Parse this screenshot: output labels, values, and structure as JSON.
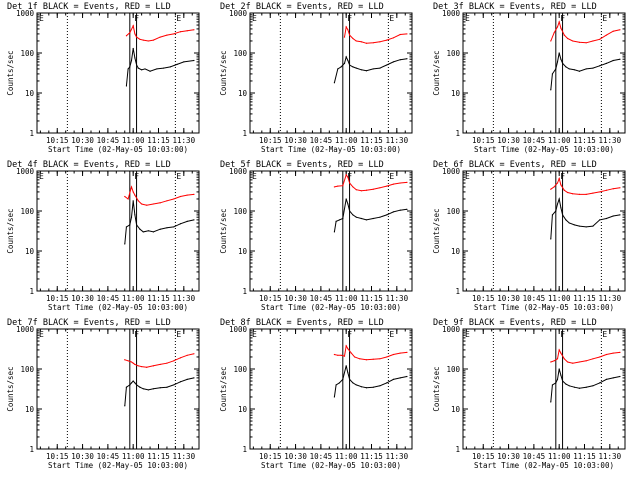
{
  "chart_data": [
    {
      "type": "line",
      "title": "Det 1f BLACK = Events, RED = LLD",
      "xlabel": "Start Time (02-May-05 10:03:00)",
      "ylabel": "Counts/sec",
      "x_ticks": [
        "10:15",
        "10:30",
        "10:45",
        "11:00",
        "11:15",
        "11:30"
      ],
      "yscale": "log",
      "ylim": [
        1,
        1000
      ],
      "y_ticks": [
        "1",
        "10",
        "100",
        "1000"
      ],
      "markers": [
        {
          "label": "E",
          "time": "10:03"
        },
        {
          "label": "F",
          "time": "11:00"
        },
        {
          "label": "E",
          "time": "11:25"
        }
      ],
      "series": [
        {
          "color": "#ff0000",
          "x": [
            "10:56",
            "10:58",
            "11:00",
            "11:01",
            "11:02",
            "11:04",
            "11:06",
            "11:09",
            "11:12",
            "11:16",
            "11:20",
            "11:24",
            "11:28",
            "11:32",
            "11:36"
          ],
          "values": [
            270,
            320,
            480,
            300,
            250,
            220,
            210,
            200,
            210,
            250,
            280,
            300,
            340,
            360,
            380
          ]
        },
        {
          "color": "#000000",
          "x": [
            "10:56",
            "10:57",
            "10:58",
            "10:59",
            "11:00",
            "11:01",
            "11:02",
            "11:03",
            "11:05",
            "11:07",
            "11:10",
            "11:14",
            "11:18",
            "11:22",
            "11:26",
            "11:30",
            "11:36"
          ],
          "values": [
            15,
            40,
            45,
            65,
            130,
            75,
            50,
            42,
            38,
            40,
            35,
            40,
            42,
            45,
            52,
            60,
            65
          ]
        }
      ]
    },
    {
      "type": "line",
      "title": "Det 2f BLACK = Events, RED = LLD",
      "xlabel": "Start Time (02-May-05 10:03:00)",
      "ylabel": "Counts/sec",
      "x_ticks": [
        "10:15",
        "10:30",
        "10:45",
        "11:00",
        "11:15",
        "11:30"
      ],
      "yscale": "log",
      "ylim": [
        1,
        1000
      ],
      "y_ticks": [
        "1",
        "10",
        "100",
        "1000"
      ],
      "markers": [
        {
          "label": "E",
          "time": "10:03"
        },
        {
          "label": "F",
          "time": "11:00"
        },
        {
          "label": "E",
          "time": "11:25"
        }
      ],
      "series": [
        {
          "color": "#ff0000",
          "x": [
            "10:59",
            "11:00",
            "11:01",
            "11:02",
            "11:04",
            "11:06",
            "11:09",
            "11:12",
            "11:16",
            "11:20",
            "11:24",
            "11:28",
            "11:32",
            "11:36"
          ],
          "values": [
            250,
            450,
            380,
            280,
            230,
            200,
            190,
            175,
            180,
            190,
            210,
            240,
            290,
            300
          ]
        },
        {
          "color": "#000000",
          "x": [
            "10:53",
            "10:55",
            "10:57",
            "10:59",
            "11:00",
            "11:01",
            "11:02",
            "11:04",
            "11:06",
            "11:09",
            "11:12",
            "11:16",
            "11:20",
            "11:24",
            "11:28",
            "11:32",
            "11:36"
          ],
          "values": [
            18,
            40,
            45,
            55,
            80,
            65,
            50,
            45,
            42,
            38,
            36,
            40,
            42,
            50,
            60,
            68,
            72
          ]
        }
      ]
    },
    {
      "type": "line",
      "title": "Det 3f BLACK = Events, RED = LLD",
      "xlabel": "Start Time (02-May-05 10:03:00)",
      "ylabel": "Counts/sec",
      "x_ticks": [
        "10:15",
        "10:30",
        "10:45",
        "11:00",
        "11:15",
        "11:30"
      ],
      "yscale": "log",
      "ylim": [
        1,
        1000
      ],
      "y_ticks": [
        "1",
        "10",
        "100",
        "1000"
      ],
      "markers": [
        {
          "label": "E",
          "time": "10:03"
        },
        {
          "label": "F",
          "time": "11:00"
        },
        {
          "label": "E",
          "time": "11:25"
        }
      ],
      "series": [
        {
          "color": "#ff0000",
          "x": [
            "10:55",
            "10:57",
            "10:59",
            "11:00",
            "11:01",
            "11:03",
            "11:05",
            "11:08",
            "11:12",
            "11:16",
            "11:20",
            "11:24",
            "11:28",
            "11:32",
            "11:36"
          ],
          "values": [
            200,
            320,
            450,
            600,
            420,
            280,
            230,
            200,
            185,
            180,
            200,
            220,
            280,
            350,
            380
          ]
        },
        {
          "color": "#000000",
          "x": [
            "10:55",
            "10:56",
            "10:58",
            "10:59",
            "11:00",
            "11:01",
            "11:02",
            "11:04",
            "11:06",
            "11:09",
            "11:12",
            "11:16",
            "11:20",
            "11:24",
            "11:28",
            "11:32",
            "11:36"
          ],
          "values": [
            12,
            30,
            40,
            60,
            100,
            70,
            55,
            45,
            40,
            38,
            35,
            40,
            42,
            48,
            55,
            65,
            70
          ]
        }
      ]
    },
    {
      "type": "line",
      "title": "Det 4f BLACK = Events, RED = LLD",
      "xlabel": "Start Time (02-May-05 10:03:00)",
      "ylabel": "Counts/sec",
      "x_ticks": [
        "10:15",
        "10:30",
        "10:45",
        "11:00",
        "11:15",
        "11:30"
      ],
      "yscale": "log",
      "ylim": [
        1,
        1000
      ],
      "y_ticks": [
        "1",
        "10",
        "100",
        "1000"
      ],
      "markers": [
        {
          "label": "E",
          "time": "10:03"
        },
        {
          "label": "F",
          "time": "11:00"
        },
        {
          "label": "E",
          "time": "11:25"
        }
      ],
      "series": [
        {
          "color": "#ff0000",
          "x": [
            "10:55",
            "10:57",
            "10:59",
            "11:00",
            "11:01",
            "11:03",
            "11:05",
            "11:08",
            "11:12",
            "11:16",
            "11:20",
            "11:24",
            "11:28",
            "11:32",
            "11:36"
          ],
          "values": [
            230,
            200,
            400,
            300,
            250,
            180,
            150,
            140,
            150,
            160,
            180,
            200,
            230,
            250,
            260
          ]
        },
        {
          "color": "#000000",
          "x": [
            "10:55",
            "10:56",
            "10:58",
            "10:59",
            "11:00",
            "11:01",
            "11:02",
            "11:04",
            "11:06",
            "11:09",
            "11:12",
            "11:16",
            "11:20",
            "11:24",
            "11:28",
            "11:32",
            "11:36"
          ],
          "values": [
            15,
            40,
            45,
            70,
            180,
            80,
            45,
            35,
            30,
            32,
            30,
            35,
            38,
            40,
            48,
            55,
            60
          ]
        }
      ]
    },
    {
      "type": "line",
      "title": "Det 5f BLACK = Events, RED = LLD",
      "xlabel": "Start Time (02-May-05 10:03:00)",
      "ylabel": "Counts/sec",
      "x_ticks": [
        "10:15",
        "10:30",
        "10:45",
        "11:00",
        "11:15",
        "11:30"
      ],
      "yscale": "log",
      "ylim": [
        1,
        1000
      ],
      "y_ticks": [
        "1",
        "10",
        "100",
        "1000"
      ],
      "markers": [
        {
          "label": "E",
          "time": "10:03"
        },
        {
          "label": "F",
          "time": "11:00"
        },
        {
          "label": "E",
          "time": "11:25"
        }
      ],
      "series": [
        {
          "color": "#ff0000",
          "x": [
            "10:53",
            "10:55",
            "10:58",
            "11:00",
            "11:01",
            "11:02",
            "11:04",
            "11:06",
            "11:09",
            "11:12",
            "11:16",
            "11:20",
            "11:24",
            "11:28",
            "11:32",
            "11:36"
          ],
          "values": [
            400,
            420,
            430,
            800,
            700,
            500,
            400,
            340,
            320,
            330,
            350,
            380,
            420,
            470,
            500,
            520
          ]
        },
        {
          "color": "#000000",
          "x": [
            "10:53",
            "10:54",
            "10:56",
            "10:58",
            "11:00",
            "11:01",
            "11:02",
            "11:04",
            "11:06",
            "11:09",
            "11:12",
            "11:16",
            "11:20",
            "11:24",
            "11:28",
            "11:32",
            "11:36"
          ],
          "values": [
            30,
            55,
            60,
            65,
            200,
            150,
            100,
            80,
            70,
            65,
            60,
            65,
            70,
            80,
            95,
            105,
            110
          ]
        }
      ]
    },
    {
      "type": "line",
      "title": "Det 6f BLACK = Events, RED = LLD",
      "xlabel": "Start Time (02-May-05 10:03:00)",
      "ylabel": "Counts/sec",
      "x_ticks": [
        "10:15",
        "10:30",
        "10:45",
        "11:00",
        "11:15",
        "11:30"
      ],
      "yscale": "log",
      "ylim": [
        1,
        1000
      ],
      "y_ticks": [
        "1",
        "10",
        "100",
        "1000"
      ],
      "markers": [
        {
          "label": "E",
          "time": "10:03"
        },
        {
          "label": "F",
          "time": "11:00"
        },
        {
          "label": "E",
          "time": "11:25"
        }
      ],
      "series": [
        {
          "color": "#ff0000",
          "x": [
            "10:55",
            "10:57",
            "10:59",
            "11:00",
            "11:01",
            "11:03",
            "11:05",
            "11:08",
            "11:12",
            "11:16",
            "11:20",
            "11:24",
            "11:28",
            "11:32",
            "11:36"
          ],
          "values": [
            350,
            400,
            500,
            650,
            450,
            330,
            290,
            270,
            260,
            260,
            280,
            300,
            330,
            360,
            380
          ]
        },
        {
          "color": "#000000",
          "x": [
            "10:55",
            "10:56",
            "10:58",
            "10:59",
            "11:00",
            "11:01",
            "11:02",
            "11:04",
            "11:06",
            "11:09",
            "11:12",
            "11:16",
            "11:20",
            "11:24",
            "11:28",
            "11:32",
            "11:36"
          ],
          "values": [
            20,
            80,
            100,
            150,
            200,
            120,
            80,
            60,
            50,
            45,
            42,
            40,
            42,
            60,
            65,
            75,
            80
          ]
        }
      ]
    },
    {
      "type": "line",
      "title": "Det 7f BLACK = Events, RED = LLD",
      "xlabel": "Start Time (02-May-05 10:03:00)",
      "ylabel": "Counts/sec",
      "x_ticks": [
        "10:15",
        "10:30",
        "10:45",
        "11:00",
        "11:15",
        "11:30"
      ],
      "yscale": "log",
      "ylim": [
        1,
        1000
      ],
      "y_ticks": [
        "1",
        "10",
        "100",
        "1000"
      ],
      "markers": [
        {
          "label": "E",
          "time": "10:03"
        },
        {
          "label": "F",
          "time": "11:00"
        },
        {
          "label": "E",
          "time": "11:25"
        }
      ],
      "series": [
        {
          "color": "#ff0000",
          "x": [
            "10:55",
            "10:57",
            "10:59",
            "11:00",
            "11:01",
            "11:03",
            "11:05",
            "11:08",
            "11:12",
            "11:16",
            "11:20",
            "11:24",
            "11:28",
            "11:32",
            "11:36"
          ],
          "values": [
            170,
            160,
            150,
            140,
            130,
            120,
            115,
            110,
            120,
            130,
            140,
            160,
            190,
            220,
            240
          ]
        },
        {
          "color": "#000000",
          "x": [
            "10:55",
            "10:56",
            "10:58",
            "10:59",
            "11:00",
            "11:01",
            "11:02",
            "11:04",
            "11:06",
            "11:09",
            "11:12",
            "11:16",
            "11:20",
            "11:24",
            "11:28",
            "11:32",
            "11:36"
          ],
          "values": [
            12,
            35,
            40,
            45,
            50,
            45,
            40,
            35,
            32,
            30,
            32,
            34,
            35,
            40,
            48,
            55,
            60
          ]
        }
      ]
    },
    {
      "type": "line",
      "title": "Det 8f BLACK = Events, RED = LLD",
      "xlabel": "Start Time (02-May-05 10:03:00)",
      "ylabel": "Counts/sec",
      "x_ticks": [
        "10:15",
        "10:30",
        "10:45",
        "11:00",
        "11:15",
        "11:30"
      ],
      "yscale": "log",
      "ylim": [
        1,
        1000
      ],
      "y_ticks": [
        "1",
        "10",
        "100",
        "1000"
      ],
      "markers": [
        {
          "label": "E",
          "time": "10:03"
        },
        {
          "label": "F",
          "time": "11:00"
        },
        {
          "label": "E",
          "time": "11:25"
        }
      ],
      "series": [
        {
          "color": "#ff0000",
          "x": [
            "10:53",
            "10:55",
            "10:57",
            "10:59",
            "11:00",
            "11:01",
            "11:03",
            "11:05",
            "11:08",
            "11:12",
            "11:16",
            "11:20",
            "11:24",
            "11:28",
            "11:32",
            "11:36"
          ],
          "values": [
            230,
            220,
            220,
            210,
            380,
            320,
            250,
            200,
            180,
            170,
            175,
            180,
            200,
            230,
            250,
            260
          ]
        },
        {
          "color": "#000000",
          "x": [
            "10:53",
            "10:54",
            "10:56",
            "10:58",
            "11:00",
            "11:01",
            "11:02",
            "11:04",
            "11:06",
            "11:09",
            "11:12",
            "11:16",
            "11:20",
            "11:24",
            "11:28",
            "11:32",
            "11:36"
          ],
          "values": [
            20,
            40,
            45,
            55,
            120,
            80,
            55,
            45,
            40,
            36,
            34,
            35,
            38,
            45,
            55,
            60,
            65
          ]
        }
      ]
    },
    {
      "type": "line",
      "title": "Det 9f BLACK = Events, RED = LLD",
      "xlabel": "Start Time (02-May-05 10:03:00)",
      "ylabel": "Counts/sec",
      "x_ticks": [
        "10:15",
        "10:30",
        "10:45",
        "11:00",
        "11:15",
        "11:30"
      ],
      "yscale": "log",
      "ylim": [
        1,
        1000
      ],
      "y_ticks": [
        "1",
        "10",
        "100",
        "1000"
      ],
      "markers": [
        {
          "label": "E",
          "time": "10:03"
        },
        {
          "label": "F",
          "time": "11:00"
        },
        {
          "label": "E",
          "time": "11:25"
        }
      ],
      "series": [
        {
          "color": "#ff0000",
          "x": [
            "10:55",
            "10:57",
            "10:59",
            "11:00",
            "11:01",
            "11:03",
            "11:05",
            "11:08",
            "11:12",
            "11:16",
            "11:20",
            "11:24",
            "11:28",
            "11:32",
            "11:36"
          ],
          "values": [
            150,
            160,
            180,
            300,
            250,
            180,
            150,
            140,
            150,
            160,
            180,
            200,
            230,
            250,
            260
          ]
        },
        {
          "color": "#000000",
          "x": [
            "10:55",
            "10:56",
            "10:58",
            "10:59",
            "11:00",
            "11:01",
            "11:02",
            "11:04",
            "11:06",
            "11:09",
            "11:12",
            "11:16",
            "11:20",
            "11:24",
            "11:28",
            "11:32",
            "11:36"
          ],
          "values": [
            15,
            40,
            45,
            55,
            100,
            70,
            50,
            42,
            38,
            35,
            33,
            35,
            38,
            45,
            55,
            60,
            65
          ]
        }
      ]
    }
  ]
}
